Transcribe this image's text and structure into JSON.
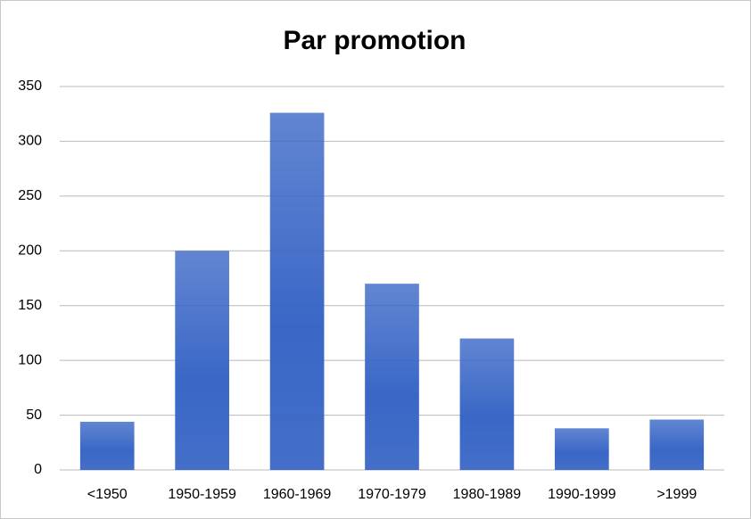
{
  "chart_data": {
    "type": "bar",
    "title": "Par promotion",
    "categories": [
      "<1950",
      "1950-1959",
      "1960-1969",
      "1970-1979",
      "1980-1989",
      "1990-1999",
      ">1999"
    ],
    "values": [
      44,
      200,
      326,
      170,
      120,
      38,
      46
    ],
    "color": "#3a67c6",
    "ylim": [
      0,
      350
    ],
    "yticks": [
      0,
      50,
      100,
      150,
      200,
      250,
      300,
      350
    ],
    "grid": true
  }
}
